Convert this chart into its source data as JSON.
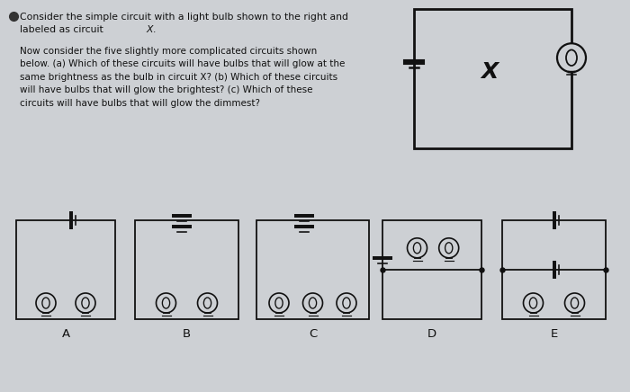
{
  "bg_color": "#cdd0d4",
  "text_color": "#111111",
  "title_line1": "Consider the simple circuit with a light bulb shown to the right and",
  "title_line2": "labeled as circuit  X.",
  "body_text": "Now consider the five slightly more complicated circuits shown\nbelow. (a) Which of these circuits will have bulbs that will glow at the\nsame brightness as the bulb in circuit X? (b) Which of these circuits\nwill have bulbs that will glow the brightest? (c) Which of these\ncircuits will have bulbs that will glow the dimmest?",
  "circuit_labels": [
    "A",
    "B",
    "C",
    "D",
    "E"
  ],
  "main_circuit_label": "X",
  "lw": 1.3
}
